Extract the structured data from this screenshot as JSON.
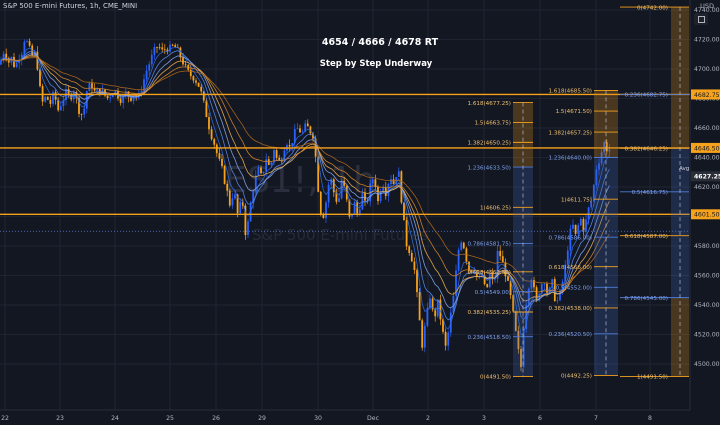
{
  "header": {
    "symbol_title": "S&P 500 E-mini Futures, 1h, CME_MINI",
    "currency": "USD"
  },
  "chart_data": {
    "type": "candlestick",
    "title": "4654 / 4666 / 4678 RT",
    "subtitle": "Step by Step Underway",
    "watermark": "ES1!, 1h",
    "watermark_sub": "S&P 500 E-mini Futures",
    "ylim": [
      4480,
      4755
    ],
    "y_ticks": [
      4740.0,
      4720.0,
      4700.0,
      4680.0,
      4660.0,
      4640.0,
      4620.0,
      4600.0,
      4580.0,
      4560.0,
      4540.0,
      4520.0,
      4500.0
    ],
    "x_ticks": [
      "22",
      "23",
      "24",
      "25",
      "26",
      "29",
      "30",
      "Dec",
      "2",
      "3",
      "6",
      "7",
      "8"
    ],
    "horizontal_levels": [
      {
        "value": 4682.75,
        "label": "4682.75"
      },
      {
        "value": 4646.5,
        "label": "4646.50"
      },
      {
        "value": 4601.5,
        "label": "4601.50"
      }
    ],
    "price_label": {
      "value": 4627.25,
      "label": "4627.25",
      "tag": "Avg"
    },
    "fib_extension_1": {
      "levels": [
        {
          "label": "1.618(4677.25)",
          "value": 4677.25
        },
        {
          "label": "1.5(4663.75)",
          "value": 4663.75
        },
        {
          "label": "1.382(4650.25)",
          "value": 4650.25
        },
        {
          "label": "1.236(4633.50)",
          "value": 4633.5
        },
        {
          "label": "1(4606.25)",
          "value": 4606.25
        },
        {
          "label": "0.786(4581.75)",
          "value": 4581.75
        },
        {
          "label": "0.618(4562.50)",
          "value": 4562.5
        },
        {
          "label": "0.5(4549.00)",
          "value": 4549.0
        },
        {
          "label": "0.382(4535.25)",
          "value": 4535.25
        },
        {
          "label": "0.236(4518.50)",
          "value": 4518.5
        },
        {
          "label": "0(4491.50)",
          "value": 4491.5
        }
      ]
    },
    "fib_extension_2": {
      "levels": [
        {
          "label": "1.618(4685.50)",
          "value": 4685.5
        },
        {
          "label": "1.5(4671.50)",
          "value": 4671.5
        },
        {
          "label": "1.382(4657.25)",
          "value": 4657.25
        },
        {
          "label": "1.236(4640.00)",
          "value": 4640.0
        },
        {
          "label": "1(4611.75)",
          "value": 4611.75
        },
        {
          "label": "0.786(4586.00)",
          "value": 4586.0
        },
        {
          "label": "0.618(4566.00)",
          "value": 4566.0
        },
        {
          "label": "0.5(4552.00)",
          "value": 4552.0
        },
        {
          "label": "0.382(4538.00)",
          "value": 4538.0
        },
        {
          "label": "0.236(4520.50)",
          "value": 4520.5
        },
        {
          "label": "0(4492.25)",
          "value": 4492.25
        }
      ]
    },
    "fib_retracement": {
      "levels": [
        {
          "label": "0(4742.00)",
          "value": 4742.0
        },
        {
          "label": "0.236(4682.75)",
          "value": 4682.75
        },
        {
          "label": "0.382(4646.25)",
          "value": 4646.25
        },
        {
          "label": "0.5(4616.75)",
          "value": 4616.75
        },
        {
          "label": "0.618(4587.00)",
          "value": 4587.0
        },
        {
          "label": "0.786(4545.00)",
          "value": 4545.0
        },
        {
          "label": "1(4491.50)",
          "value": 4491.5
        }
      ]
    },
    "price_path": [
      [
        0,
        4703
      ],
      [
        3,
        4712
      ],
      [
        6,
        4710
      ],
      [
        8,
        4704
      ],
      [
        12,
        4708
      ],
      [
        15,
        4700
      ],
      [
        18,
        4707
      ],
      [
        22,
        4712
      ],
      [
        25,
        4722
      ],
      [
        28,
        4716
      ],
      [
        33,
        4708
      ],
      [
        36,
        4712
      ],
      [
        39,
        4690
      ],
      [
        43,
        4676
      ],
      [
        46,
        4682
      ],
      [
        50,
        4676
      ],
      [
        54,
        4684
      ],
      [
        58,
        4672
      ],
      [
        62,
        4678
      ],
      [
        66,
        4684
      ],
      [
        70,
        4680
      ],
      [
        74,
        4686
      ],
      [
        79,
        4672
      ],
      [
        83,
        4668
      ],
      [
        87,
        4686
      ],
      [
        91,
        4690
      ],
      [
        95,
        4684
      ],
      [
        99,
        4686
      ],
      [
        103,
        4684
      ],
      [
        107,
        4680
      ],
      [
        110,
        4682
      ],
      [
        114,
        4686
      ],
      [
        118,
        4682
      ],
      [
        122,
        4678
      ],
      [
        126,
        4684
      ],
      [
        130,
        4680
      ],
      [
        134,
        4682
      ],
      [
        138,
        4680
      ],
      [
        142,
        4688
      ],
      [
        146,
        4698
      ],
      [
        150,
        4705
      ],
      [
        154,
        4712
      ],
      [
        158,
        4716
      ],
      [
        162,
        4712
      ],
      [
        166,
        4714
      ],
      [
        170,
        4714
      ],
      [
        174,
        4716
      ],
      [
        178,
        4712
      ],
      [
        182,
        4706
      ],
      [
        186,
        4700
      ],
      [
        190,
        4696
      ],
      [
        194,
        4694
      ],
      [
        198,
        4690
      ],
      [
        202,
        4682
      ],
      [
        206,
        4670
      ],
      [
        210,
        4658
      ],
      [
        214,
        4650
      ],
      [
        218,
        4640
      ],
      [
        222,
        4632
      ],
      [
        226,
        4620
      ],
      [
        230,
        4608
      ],
      [
        234,
        4618
      ],
      [
        238,
        4600
      ],
      [
        242,
        4614
      ],
      [
        246,
        4585
      ],
      [
        250,
        4606
      ],
      [
        254,
        4622
      ],
      [
        258,
        4632
      ],
      [
        262,
        4626
      ],
      [
        266,
        4640
      ],
      [
        270,
        4632
      ],
      [
        274,
        4646
      ],
      [
        278,
        4636
      ],
      [
        282,
        4640
      ],
      [
        286,
        4652
      ],
      [
        290,
        4646
      ],
      [
        294,
        4656
      ],
      [
        298,
        4660
      ],
      [
        302,
        4656
      ],
      [
        306,
        4662
      ],
      [
        310,
        4658
      ],
      [
        314,
        4654
      ],
      [
        318,
        4620
      ],
      [
        322,
        4596
      ],
      [
        326,
        4610
      ],
      [
        330,
        4628
      ],
      [
        334,
        4616
      ],
      [
        338,
        4608
      ],
      [
        342,
        4626
      ],
      [
        346,
        4614
      ],
      [
        350,
        4596
      ],
      [
        354,
        4610
      ],
      [
        358,
        4600
      ],
      [
        362,
        4616
      ],
      [
        366,
        4606
      ],
      [
        370,
        4620
      ],
      [
        374,
        4628
      ],
      [
        378,
        4610
      ],
      [
        382,
        4624
      ],
      [
        386,
        4616
      ],
      [
        390,
        4628
      ],
      [
        394,
        4622
      ],
      [
        398,
        4634
      ],
      [
        402,
        4608
      ],
      [
        406,
        4582
      ],
      [
        410,
        4576
      ],
      [
        414,
        4566
      ],
      [
        418,
        4540
      ],
      [
        422,
        4512
      ],
      [
        426,
        4530
      ],
      [
        430,
        4546
      ],
      [
        434,
        4530
      ],
      [
        438,
        4542
      ],
      [
        442,
        4524
      ],
      [
        446,
        4510
      ],
      [
        450,
        4530
      ],
      [
        454,
        4548
      ],
      [
        458,
        4576
      ],
      [
        462,
        4586
      ],
      [
        466,
        4572
      ],
      [
        470,
        4562
      ],
      [
        474,
        4566
      ],
      [
        478,
        4556
      ],
      [
        482,
        4560
      ],
      [
        486,
        4548
      ],
      [
        490,
        4562
      ],
      [
        494,
        4552
      ],
      [
        498,
        4578
      ],
      [
        502,
        4570
      ],
      [
        506,
        4560
      ],
      [
        510,
        4548
      ],
      [
        514,
        4530
      ],
      [
        518,
        4510
      ],
      [
        521,
        4498
      ],
      [
        524,
        4530
      ],
      [
        528,
        4552
      ],
      [
        532,
        4560
      ],
      [
        536,
        4540
      ],
      [
        540,
        4552
      ],
      [
        544,
        4558
      ],
      [
        548,
        4546
      ],
      [
        552,
        4556
      ],
      [
        556,
        4540
      ],
      [
        560,
        4548
      ],
      [
        564,
        4560
      ],
      [
        568,
        4580
      ],
      [
        572,
        4596
      ],
      [
        576,
        4586
      ],
      [
        580,
        4600
      ],
      [
        584,
        4590
      ],
      [
        588,
        4604
      ],
      [
        592,
        4612
      ],
      [
        596,
        4632
      ],
      [
        600,
        4640
      ],
      [
        604,
        4650
      ],
      [
        608,
        4644
      ],
      [
        612,
        4648
      ]
    ]
  }
}
